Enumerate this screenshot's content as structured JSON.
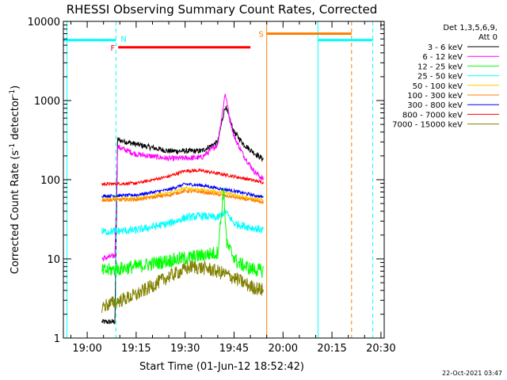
{
  "chart_data": {
    "type": "line",
    "title": "RHESSI Observing Summary Count Rates, Corrected",
    "xlabel": "Start Time (01-Jun-12 18:52:42)",
    "ylabel_main": "Corrected Count Rate (s",
    "ylabel_sup1": "-1",
    "ylabel_mid": " detector",
    "ylabel_sup2": "-1",
    "ylabel_end": ")",
    "yscale": "log",
    "ylim": [
      1,
      10000
    ],
    "xlim_minutes": [
      52.7,
      151
    ],
    "x_ticks": [
      {
        "label": "19:00",
        "minutes": 60
      },
      {
        "label": "19:15",
        "minutes": 75
      },
      {
        "label": "19:30",
        "minutes": 90
      },
      {
        "label": "19:45",
        "minutes": 105
      },
      {
        "label": "20:00",
        "minutes": 120
      },
      {
        "label": "20:15",
        "minutes": 135
      },
      {
        "label": "20:30",
        "minutes": 150
      }
    ],
    "y_ticks": [
      {
        "label": "1",
        "value": 1
      },
      {
        "label": "10",
        "value": 10
      },
      {
        "label": "100",
        "value": 100
      },
      {
        "label": "1000",
        "value": 1000
      },
      {
        "label": "10000",
        "value": 10000
      }
    ],
    "legend_header": [
      "Det 1,3,5,6,9,",
      "Att 0"
    ],
    "legend_placement": "top-right",
    "series": [
      {
        "name": "3 - 6 keV",
        "color": "#000000"
      },
      {
        "name": "6 - 12 keV",
        "color": "#ff00ff"
      },
      {
        "name": "12 - 25 keV",
        "color": "#00ff00"
      },
      {
        "name": "25 - 50 keV",
        "color": "#00ffff"
      },
      {
        "name": "50 - 100 keV",
        "color": "#ffcc00"
      },
      {
        "name": "100 - 300 keV",
        "color": "#ff7f00"
      },
      {
        "name": "300 - 800 keV",
        "color": "#0000ff"
      },
      {
        "name": "800 - 7000 keV",
        "color": "#ff0000"
      },
      {
        "name": "7000 - 15000 keV",
        "color": "#808000"
      }
    ],
    "flag_bars": [
      {
        "label": "N",
        "color": "#00ffff",
        "level": 5800,
        "segments": [
          [
            52.7,
            68.8
          ],
          [
            130.7,
            147.5
          ]
        ]
      },
      {
        "label": "F",
        "color": "#ff0000",
        "level": 4700,
        "segments": [
          [
            69.5,
            110
          ]
        ]
      },
      {
        "label": "S",
        "color": "#ff7f00",
        "level": 7000,
        "segments": [
          [
            115,
            141
          ]
        ]
      }
    ],
    "vertical_markers": [
      {
        "minutes": 53.8,
        "color": "#00ffff",
        "style": "solid"
      },
      {
        "minutes": 68.8,
        "color": "#00ffff",
        "style": "dashed"
      },
      {
        "minutes": 115,
        "color": "#ff7f00",
        "style": "solid"
      },
      {
        "minutes": 130.7,
        "color": "#00ffff",
        "style": "solid"
      },
      {
        "minutes": 141,
        "color": "#ff7f00",
        "style": "dashed"
      },
      {
        "minutes": 147.5,
        "color": "#00ffff",
        "style": "dashed"
      }
    ],
    "data_window_minutes": [
      64.5,
      114.2
    ],
    "flare_peak_minutes": 102,
    "profiles": [
      {
        "series": "3 - 6 keV",
        "points": [
          [
            64.5,
            1.6
          ],
          [
            68.5,
            1.6
          ],
          [
            69.3,
            320
          ],
          [
            75,
            280
          ],
          [
            85,
            230
          ],
          [
            95,
            230
          ],
          [
            100,
            300
          ],
          [
            101.5,
            600
          ],
          [
            102.3,
            850
          ],
          [
            103.5,
            600
          ],
          [
            105,
            400
          ],
          [
            108,
            280
          ],
          [
            111,
            220
          ],
          [
            114,
            180
          ]
        ]
      },
      {
        "series": "6 - 12 keV",
        "points": [
          [
            64.5,
            10
          ],
          [
            68.5,
            11
          ],
          [
            69.3,
            260
          ],
          [
            75,
            210
          ],
          [
            85,
            185
          ],
          [
            95,
            190
          ],
          [
            100,
            280
          ],
          [
            101.5,
            750
          ],
          [
            102.3,
            1250
          ],
          [
            103.5,
            650
          ],
          [
            105,
            350
          ],
          [
            108,
            200
          ],
          [
            111,
            130
          ],
          [
            114,
            100
          ]
        ]
      },
      {
        "series": "800 - 7000 keV",
        "points": [
          [
            64.5,
            88
          ],
          [
            75,
            90
          ],
          [
            85,
            110
          ],
          [
            90,
            130
          ],
          [
            95,
            130
          ],
          [
            100,
            120
          ],
          [
            105,
            110
          ],
          [
            110,
            100
          ],
          [
            114,
            92
          ]
        ]
      },
      {
        "series": "300 - 800 keV",
        "points": [
          [
            64.5,
            62
          ],
          [
            75,
            64
          ],
          [
            85,
            75
          ],
          [
            90,
            88
          ],
          [
            95,
            85
          ],
          [
            100,
            78
          ],
          [
            105,
            72
          ],
          [
            110,
            65
          ],
          [
            114,
            60
          ]
        ]
      },
      {
        "series": "50 - 100 keV",
        "points": [
          [
            64.5,
            57
          ],
          [
            75,
            58
          ],
          [
            85,
            68
          ],
          [
            90,
            78
          ],
          [
            95,
            75
          ],
          [
            100,
            70
          ],
          [
            105,
            65
          ],
          [
            110,
            58
          ],
          [
            114,
            55
          ]
        ]
      },
      {
        "series": "100 - 300 keV",
        "points": [
          [
            64.5,
            55
          ],
          [
            75,
            56
          ],
          [
            85,
            64
          ],
          [
            90,
            72
          ],
          [
            95,
            70
          ],
          [
            100,
            65
          ],
          [
            105,
            60
          ],
          [
            110,
            55
          ],
          [
            114,
            52
          ]
        ]
      },
      {
        "series": "25 - 50 keV",
        "points": [
          [
            64.5,
            22
          ],
          [
            75,
            23
          ],
          [
            85,
            28
          ],
          [
            90,
            33
          ],
          [
            95,
            35
          ],
          [
            100,
            33
          ],
          [
            102.3,
            40
          ],
          [
            105,
            28
          ],
          [
            110,
            25
          ],
          [
            114,
            23
          ]
        ]
      },
      {
        "series": "12 - 25 keV",
        "points": [
          [
            64.5,
            7
          ],
          [
            75,
            8
          ],
          [
            85,
            9.5
          ],
          [
            95,
            11
          ],
          [
            100,
            12
          ],
          [
            101.8,
            75
          ],
          [
            102.8,
            15
          ],
          [
            106,
            9
          ],
          [
            110,
            7.5
          ],
          [
            114,
            7
          ]
        ]
      },
      {
        "series": "7000 - 15000 keV",
        "points": [
          [
            64.5,
            2.5
          ],
          [
            75,
            3.5
          ],
          [
            85,
            6
          ],
          [
            92,
            8
          ],
          [
            97,
            7.5
          ],
          [
            102,
            6.5
          ],
          [
            106,
            5.5
          ],
          [
            110,
            4.5
          ],
          [
            114,
            4
          ]
        ]
      }
    ]
  },
  "footer": {
    "timestamp": "22-Oct-2021 03:47"
  }
}
